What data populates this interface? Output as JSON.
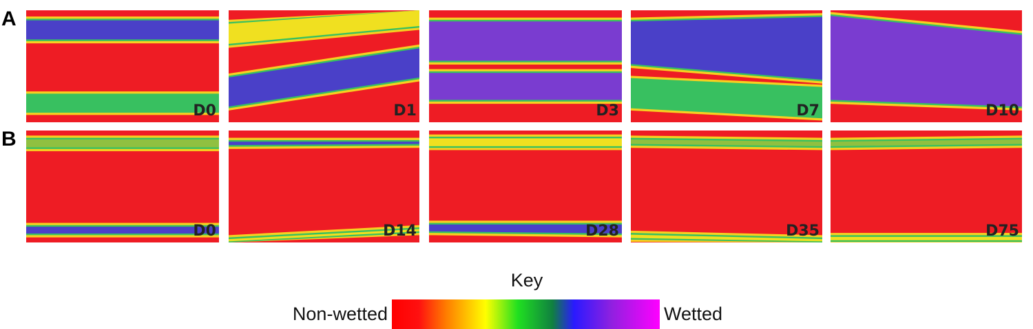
{
  "rows": [
    {
      "label": "A",
      "panels": [
        "D0",
        "D1",
        "D3",
        "D7",
        "D10"
      ]
    },
    {
      "label": "B",
      "panels": [
        "D0",
        "D14",
        "D28",
        "D35",
        "D75"
      ]
    }
  ],
  "key": {
    "title": "Key",
    "low_label": "Non-wetted",
    "high_label": "Wetted"
  }
}
